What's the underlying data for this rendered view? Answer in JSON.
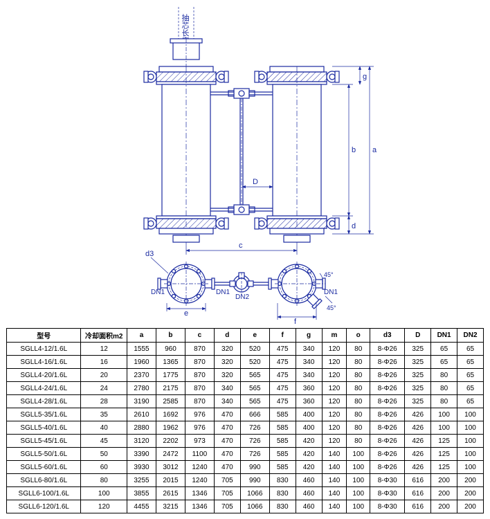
{
  "diagram": {
    "labels": {
      "top_text": "抽芯长度",
      "d3": "d3",
      "DN1": "DN1",
      "DN2": "DN2",
      "a": "a",
      "b": "b",
      "c": "c",
      "d": "d",
      "e": "e",
      "f": "f",
      "g": "g",
      "D": "D"
    },
    "colors": {
      "stroke": "#1a2aa0",
      "fill": "#ffffff",
      "hatch": "#1a2aa0",
      "bg": "#ffffff"
    },
    "stroke_width": 1.2,
    "thin_stroke": 0.7
  },
  "table": {
    "headers": [
      "型号",
      "冷却面积m2",
      "a",
      "b",
      "c",
      "d",
      "e",
      "f",
      "g",
      "m",
      "o",
      "d3",
      "D",
      "DN1",
      "DN2"
    ],
    "rows": [
      [
        "SGLL4-12/1.6L",
        "12",
        "1555",
        "960",
        "870",
        "320",
        "520",
        "475",
        "340",
        "120",
        "80",
        "8-Φ26",
        "325",
        "65",
        "65"
      ],
      [
        "SGLL4-16/1.6L",
        "16",
        "1960",
        "1365",
        "870",
        "320",
        "520",
        "475",
        "340",
        "120",
        "80",
        "8-Φ26",
        "325",
        "65",
        "65"
      ],
      [
        "SGLL4-20/1.6L",
        "20",
        "2370",
        "1775",
        "870",
        "320",
        "565",
        "475",
        "340",
        "120",
        "80",
        "8-Φ26",
        "325",
        "80",
        "65"
      ],
      [
        "SGLL4-24/1.6L",
        "24",
        "2780",
        "2175",
        "870",
        "340",
        "565",
        "475",
        "360",
        "120",
        "80",
        "8-Φ26",
        "325",
        "80",
        "65"
      ],
      [
        "SGLL4-28/1.6L",
        "28",
        "3190",
        "2585",
        "870",
        "340",
        "565",
        "475",
        "360",
        "120",
        "80",
        "8-Φ26",
        "325",
        "80",
        "65"
      ],
      [
        "SGLL5-35/1.6L",
        "35",
        "2610",
        "1692",
        "976",
        "470",
        "666",
        "585",
        "400",
        "120",
        "80",
        "8-Φ26",
        "426",
        "100",
        "100"
      ],
      [
        "SGLL5-40/1.6L",
        "40",
        "2880",
        "1962",
        "976",
        "470",
        "726",
        "585",
        "400",
        "120",
        "80",
        "8-Φ26",
        "426",
        "100",
        "100"
      ],
      [
        "SGLL5-45/1.6L",
        "45",
        "3120",
        "2202",
        "973",
        "470",
        "726",
        "585",
        "420",
        "120",
        "80",
        "8-Φ26",
        "426",
        "125",
        "100"
      ],
      [
        "SGLL5-50/1.6L",
        "50",
        "3390",
        "2472",
        "1100",
        "470",
        "726",
        "585",
        "420",
        "140",
        "100",
        "8-Φ26",
        "426",
        "125",
        "100"
      ],
      [
        "SGLL5-60/1.6L",
        "60",
        "3930",
        "3012",
        "1240",
        "470",
        "990",
        "585",
        "420",
        "140",
        "100",
        "8-Φ26",
        "426",
        "125",
        "100"
      ],
      [
        "SGLL6-80/1.6L",
        "80",
        "3255",
        "2015",
        "1240",
        "705",
        "990",
        "830",
        "460",
        "140",
        "100",
        "8-Φ30",
        "616",
        "200",
        "200"
      ],
      [
        "SGLL6-100/1.6L",
        "100",
        "3855",
        "2615",
        "1346",
        "705",
        "1066",
        "830",
        "460",
        "140",
        "100",
        "8-Φ30",
        "616",
        "200",
        "200"
      ],
      [
        "SGLL6-120/1.6L",
        "120",
        "4455",
        "3215",
        "1346",
        "705",
        "1066",
        "830",
        "460",
        "140",
        "100",
        "8-Φ30",
        "616",
        "200",
        "200"
      ]
    ],
    "col_widths": [
      "100px",
      "60px",
      "36px",
      "36px",
      "36px",
      "32px",
      "36px",
      "32px",
      "32px",
      "30px",
      "28px",
      "44px",
      "32px",
      "32px",
      "32px"
    ]
  }
}
